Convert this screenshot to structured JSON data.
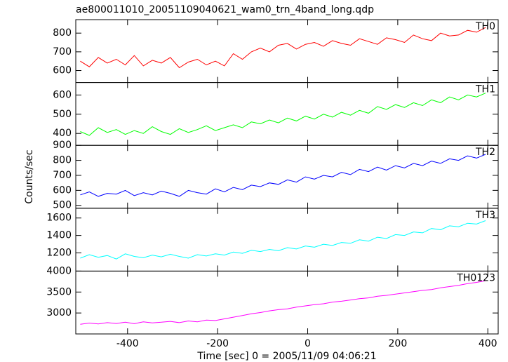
{
  "chart_data": [
    {
      "type": "line",
      "title": "ae800011010_20051109040621_wam0_trn_4band_long.qdp",
      "x": [
        -505,
        -485,
        -465,
        -445,
        -425,
        -405,
        -385,
        -365,
        -345,
        -325,
        -305,
        -285,
        -265,
        -245,
        -225,
        -205,
        -185,
        -165,
        -145,
        -125,
        -105,
        -85,
        -65,
        -45,
        -25,
        -5,
        15,
        35,
        55,
        75,
        95,
        115,
        135,
        155,
        175,
        195,
        215,
        235,
        255,
        275,
        295,
        315,
        335,
        355,
        375,
        395
      ],
      "series": [
        {
          "name": "TH0",
          "color": "#ff0000",
          "values": [
            650,
            620,
            670,
            640,
            660,
            630,
            680,
            625,
            655,
            640,
            670,
            615,
            645,
            660,
            630,
            650,
            625,
            690,
            660,
            700,
            720,
            700,
            735,
            745,
            715,
            740,
            750,
            730,
            760,
            745,
            735,
            770,
            755,
            740,
            775,
            765,
            750,
            790,
            770,
            760,
            800,
            785,
            790,
            815,
            805,
            830
          ]
        }
      ],
      "xlim": [
        -515,
        423
      ],
      "ylim": [
        536,
        872
      ],
      "yticks": [
        600,
        700,
        800
      ]
    },
    {
      "type": "line",
      "x": [
        -505,
        -485,
        -465,
        -445,
        -425,
        -405,
        -385,
        -365,
        -345,
        -325,
        -305,
        -285,
        -265,
        -245,
        -225,
        -205,
        -185,
        -165,
        -145,
        -125,
        -105,
        -85,
        -65,
        -45,
        -25,
        -5,
        15,
        35,
        55,
        75,
        95,
        115,
        135,
        155,
        175,
        195,
        215,
        235,
        255,
        275,
        295,
        315,
        335,
        355,
        375,
        395
      ],
      "series": [
        {
          "name": "TH1",
          "color": "#00ff00",
          "values": [
            410,
            390,
            430,
            405,
            420,
            395,
            415,
            400,
            435,
            410,
            395,
            425,
            405,
            420,
            440,
            415,
            430,
            445,
            430,
            460,
            450,
            470,
            455,
            480,
            465,
            490,
            475,
            500,
            485,
            510,
            495,
            520,
            505,
            540,
            525,
            550,
            535,
            560,
            545,
            575,
            560,
            590,
            575,
            600,
            590,
            610
          ]
        }
      ],
      "xlim": [
        -515,
        423
      ],
      "ylim": [
        338,
        665
      ],
      "yticks": [
        400,
        500,
        600
      ]
    },
    {
      "type": "line",
      "ylabel": "Counts/sec",
      "x": [
        -505,
        -485,
        -465,
        -445,
        -425,
        -405,
        -385,
        -365,
        -345,
        -325,
        -305,
        -285,
        -265,
        -245,
        -225,
        -205,
        -185,
        -165,
        -145,
        -125,
        -105,
        -85,
        -65,
        -45,
        -25,
        -5,
        15,
        35,
        55,
        75,
        95,
        115,
        135,
        155,
        175,
        195,
        215,
        235,
        255,
        275,
        295,
        315,
        335,
        355,
        375,
        395
      ],
      "series": [
        {
          "name": "TH2",
          "color": "#0000ff",
          "values": [
            570,
            590,
            560,
            580,
            575,
            600,
            565,
            585,
            570,
            595,
            580,
            560,
            600,
            585,
            575,
            610,
            590,
            620,
            605,
            635,
            625,
            650,
            640,
            670,
            655,
            690,
            675,
            700,
            690,
            720,
            705,
            740,
            725,
            755,
            735,
            765,
            750,
            780,
            765,
            795,
            780,
            810,
            800,
            830,
            815,
            840
          ]
        }
      ],
      "xlim": [
        -515,
        423
      ],
      "ylim": [
        481,
        900
      ],
      "yticks": [
        500,
        600,
        700,
        800,
        900
      ]
    },
    {
      "type": "line",
      "x": [
        -505,
        -485,
        -465,
        -445,
        -425,
        -405,
        -385,
        -365,
        -345,
        -325,
        -305,
        -285,
        -265,
        -245,
        -225,
        -205,
        -185,
        -165,
        -145,
        -125,
        -105,
        -85,
        -65,
        -45,
        -25,
        -5,
        15,
        35,
        55,
        75,
        95,
        115,
        135,
        155,
        175,
        195,
        215,
        235,
        255,
        275,
        295,
        315,
        335,
        355,
        375,
        395
      ],
      "series": [
        {
          "name": "TH3",
          "color": "#00ffff",
          "values": [
            1140,
            1180,
            1150,
            1170,
            1130,
            1190,
            1160,
            1145,
            1175,
            1155,
            1185,
            1160,
            1140,
            1180,
            1165,
            1190,
            1175,
            1210,
            1195,
            1230,
            1215,
            1240,
            1225,
            1260,
            1245,
            1280,
            1265,
            1300,
            1285,
            1320,
            1310,
            1350,
            1335,
            1380,
            1365,
            1410,
            1400,
            1440,
            1430,
            1480,
            1465,
            1510,
            1500,
            1540,
            1530,
            1570
          ]
        }
      ],
      "xlim": [
        -515,
        423
      ],
      "ylim": [
        992,
        1712
      ],
      "yticks": [
        1200,
        1400,
        1600
      ]
    },
    {
      "type": "line",
      "xlabel": "Time [sec] 0 = 2005/11/09 04:06:21",
      "x": [
        -505,
        -485,
        -465,
        -445,
        -425,
        -405,
        -385,
        -365,
        -345,
        -325,
        -305,
        -285,
        -265,
        -245,
        -225,
        -205,
        -185,
        -165,
        -145,
        -125,
        -105,
        -85,
        -65,
        -45,
        -25,
        -5,
        15,
        35,
        55,
        75,
        95,
        115,
        135,
        155,
        175,
        195,
        215,
        235,
        255,
        275,
        295,
        315,
        335,
        355,
        375,
        395
      ],
      "series": [
        {
          "name": "TH0123",
          "color": "#ff00ff",
          "values": [
            2730,
            2760,
            2740,
            2770,
            2750,
            2780,
            2745,
            2790,
            2765,
            2780,
            2800,
            2770,
            2810,
            2790,
            2830,
            2820,
            2860,
            2900,
            2940,
            2980,
            3010,
            3050,
            3080,
            3100,
            3140,
            3170,
            3200,
            3220,
            3260,
            3280,
            3310,
            3340,
            3360,
            3400,
            3420,
            3450,
            3480,
            3510,
            3540,
            3560,
            3600,
            3630,
            3660,
            3700,
            3730,
            3770
          ]
        }
      ],
      "xlim": [
        -515,
        423
      ],
      "ylim": [
        2500,
        4000
      ],
      "yticks": [
        3000,
        3500,
        4000
      ],
      "xticks": [
        -400,
        -200,
        0,
        200,
        400
      ]
    }
  ]
}
